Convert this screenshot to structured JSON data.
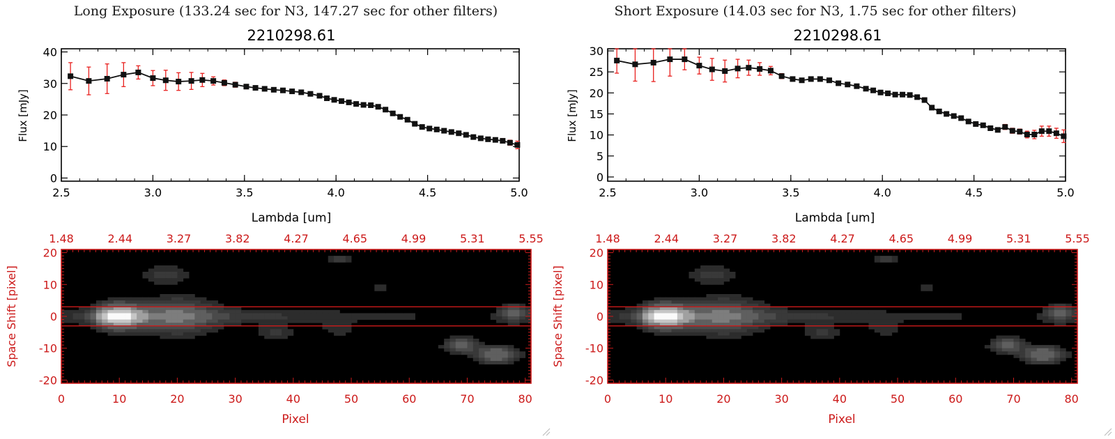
{
  "panels": [
    {
      "heading": "Long Exposure (133.24 sec for N3, 147.27 sec for other filters)",
      "spectrum": {
        "title": "2210298.61",
        "ylabel": "Flux [mJy]",
        "xlabel": "Lambda [um]",
        "yticks": [
          "0",
          "10",
          "20",
          "30",
          "40"
        ],
        "xticks": [
          "2.5",
          "3.0",
          "3.5",
          "4.0",
          "4.5",
          "5.0"
        ]
      },
      "image": {
        "top_ticks": [
          "1.48",
          "2.44",
          "3.27",
          "3.82",
          "4.27",
          "4.65",
          "4.99",
          "5.31",
          "5.55"
        ],
        "yticks": [
          "20",
          "10",
          "0",
          "-10",
          "-20"
        ],
        "xticks": [
          "0",
          "10",
          "20",
          "30",
          "40",
          "50",
          "60",
          "70",
          "80"
        ],
        "ylabel": "Space Shift [pixel]",
        "xlabel": "Pixel"
      }
    },
    {
      "heading": "Short Exposure (14.03 sec for N3, 1.75 sec for other filters)",
      "spectrum": {
        "title": "2210298.61",
        "ylabel": "Flux [mJy]",
        "xlabel": "Lambda [um]",
        "yticks": [
          "0",
          "5",
          "10",
          "15",
          "20",
          "25",
          "30"
        ],
        "xticks": [
          "2.5",
          "3.0",
          "3.5",
          "4.0",
          "4.5",
          "5.0"
        ]
      },
      "image": {
        "top_ticks": [
          "1.48",
          "2.44",
          "3.27",
          "3.82",
          "4.27",
          "4.65",
          "4.99",
          "5.31",
          "5.55"
        ],
        "yticks": [
          "20",
          "10",
          "0",
          "-10",
          "-20"
        ],
        "xticks": [
          "0",
          "10",
          "20",
          "30",
          "40",
          "50",
          "60",
          "70",
          "80"
        ],
        "ylabel": "Space Shift [pixel]",
        "xlabel": "Pixel"
      }
    }
  ],
  "colors": {
    "axis": "#000000",
    "errorbar": "#e8201e",
    "marker": "#111111",
    "image_frame": "#cc1a1a",
    "image_text": "#cc1a1a"
  },
  "chart_data": [
    {
      "type": "line",
      "title": "2210298.61",
      "xlabel": "Lambda [um]",
      "ylabel": "Flux [mJy]",
      "xlim": [
        2.5,
        5.0
      ],
      "ylim": [
        -1,
        41
      ],
      "x": [
        2.55,
        2.65,
        2.75,
        2.84,
        2.92,
        3.0,
        3.07,
        3.14,
        3.21,
        3.27,
        3.33,
        3.39,
        3.45,
        3.51,
        3.56,
        3.61,
        3.66,
        3.71,
        3.76,
        3.81,
        3.86,
        3.91,
        3.95,
        3.99,
        4.03,
        4.07,
        4.11,
        4.15,
        4.19,
        4.23,
        4.27,
        4.31,
        4.35,
        4.39,
        4.43,
        4.47,
        4.51,
        4.55,
        4.59,
        4.63,
        4.67,
        4.71,
        4.75,
        4.79,
        4.83,
        4.87,
        4.91,
        4.95,
        4.99
      ],
      "series": [
        {
          "values": [
            32.3,
            30.8,
            31.5,
            32.8,
            33.5,
            31.7,
            31.0,
            30.6,
            30.8,
            31.1,
            30.8,
            30.2,
            29.6,
            29.0,
            28.6,
            28.3,
            28.0,
            27.8,
            27.5,
            27.2,
            26.7,
            26.1,
            25.3,
            24.8,
            24.4,
            24.0,
            23.5,
            23.2,
            23.1,
            22.6,
            21.7,
            20.5,
            19.4,
            18.5,
            17.2,
            16.2,
            15.7,
            15.4,
            15.0,
            14.6,
            14.2,
            13.7,
            13.0,
            12.6,
            12.3,
            12.1,
            11.8,
            11.2,
            10.5
          ],
          "errors": [
            4.3,
            4.4,
            4.7,
            3.8,
            2.1,
            2.4,
            3.2,
            2.8,
            2.7,
            2.1,
            1.3,
            0.9,
            0.8,
            0.7,
            0.6,
            0.6,
            0.6,
            0.6,
            0.6,
            0.6,
            0.6,
            0.6,
            0.6,
            0.6,
            0.6,
            0.6,
            0.6,
            0.6,
            0.6,
            0.6,
            0.6,
            0.6,
            0.6,
            0.6,
            0.6,
            0.6,
            0.6,
            0.6,
            0.6,
            0.6,
            0.6,
            0.6,
            0.6,
            0.6,
            0.6,
            0.6,
            0.7,
            0.8,
            1.2
          ]
        }
      ]
    },
    {
      "type": "line",
      "title": "2210298.61",
      "xlabel": "Lambda [um]",
      "ylabel": "Flux [mJy]",
      "xlim": [
        2.5,
        5.0
      ],
      "ylim": [
        -1,
        30.5
      ],
      "x": [
        2.55,
        2.65,
        2.75,
        2.84,
        2.92,
        3.0,
        3.07,
        3.14,
        3.21,
        3.27,
        3.33,
        3.39,
        3.45,
        3.51,
        3.56,
        3.61,
        3.66,
        3.71,
        3.76,
        3.81,
        3.86,
        3.91,
        3.95,
        3.99,
        4.03,
        4.07,
        4.11,
        4.15,
        4.19,
        4.23,
        4.27,
        4.31,
        4.35,
        4.39,
        4.43,
        4.47,
        4.51,
        4.55,
        4.59,
        4.63,
        4.67,
        4.71,
        4.75,
        4.79,
        4.83,
        4.87,
        4.91,
        4.95,
        4.99
      ],
      "series": [
        {
          "values": [
            27.7,
            26.8,
            27.2,
            28.0,
            28.0,
            26.5,
            25.6,
            25.2,
            25.8,
            26.0,
            25.7,
            25.3,
            24.0,
            23.3,
            23.0,
            23.3,
            23.3,
            23.0,
            22.3,
            22.0,
            21.6,
            21.0,
            20.6,
            20.1,
            19.9,
            19.6,
            19.6,
            19.5,
            19.0,
            18.3,
            16.5,
            15.6,
            15.0,
            14.5,
            14.0,
            13.2,
            12.6,
            12.3,
            11.6,
            11.2,
            11.9,
            11.0,
            10.8,
            10.1,
            10.1,
            10.9,
            10.9,
            10.4,
            9.7
          ],
          "errors": [
            3.0,
            4.0,
            4.5,
            4.0,
            2.5,
            2.0,
            2.6,
            2.6,
            2.2,
            1.8,
            1.5,
            1.0,
            0.6,
            0.5,
            0.5,
            0.5,
            0.5,
            0.5,
            0.5,
            0.5,
            0.5,
            0.5,
            0.5,
            0.5,
            0.5,
            0.5,
            0.5,
            0.5,
            0.5,
            0.5,
            0.5,
            0.5,
            0.5,
            0.5,
            0.5,
            0.5,
            0.5,
            0.5,
            0.5,
            0.5,
            0.6,
            0.6,
            0.6,
            0.8,
            1.0,
            1.2,
            1.2,
            1.2,
            1.5
          ]
        }
      ]
    },
    {
      "type": "heatmap",
      "xlabel": "Pixel",
      "ylabel": "Space Shift [pixel]",
      "xlim": [
        0,
        81
      ],
      "ylim": [
        -21,
        21
      ],
      "top_axis_ticks": [
        "1.48",
        "2.44",
        "3.27",
        "3.82",
        "4.27",
        "4.65",
        "4.99",
        "5.31",
        "5.55"
      ],
      "extraction_window": [
        -3,
        3
      ],
      "sources": [
        {
          "x": 10,
          "y": 0,
          "peak": 1.0,
          "sx": 2.6,
          "sy": 2.4
        },
        {
          "x": 78,
          "y": 1,
          "peak": 0.3,
          "sx": 1.6,
          "sy": 1.8
        },
        {
          "x": 69,
          "y": -9,
          "peak": 0.35,
          "sx": 1.8,
          "sy": 1.5
        },
        {
          "x": 75,
          "y": -12,
          "peak": 0.45,
          "sx": 2.2,
          "sy": 1.6
        },
        {
          "x": 18,
          "y": 13,
          "peak": 0.12,
          "sx": 3.0,
          "sy": 2.2
        },
        {
          "x": 37,
          "y": -5,
          "peak": 0.12,
          "sx": 2.2,
          "sy": 1.6
        },
        {
          "x": 48,
          "y": -4,
          "peak": 0.1,
          "sx": 2.0,
          "sy": 1.4
        },
        {
          "x": 55,
          "y": 9,
          "peak": 0.12,
          "sx": 1.1,
          "sy": 1.1
        },
        {
          "x": 48,
          "y": 18,
          "peak": 0.15,
          "sx": 1.4,
          "sy": 1.0
        },
        {
          "x": 20,
          "y": 0,
          "peak": 0.35,
          "sx": 4.5,
          "sy": 3.5
        }
      ]
    }
  ]
}
